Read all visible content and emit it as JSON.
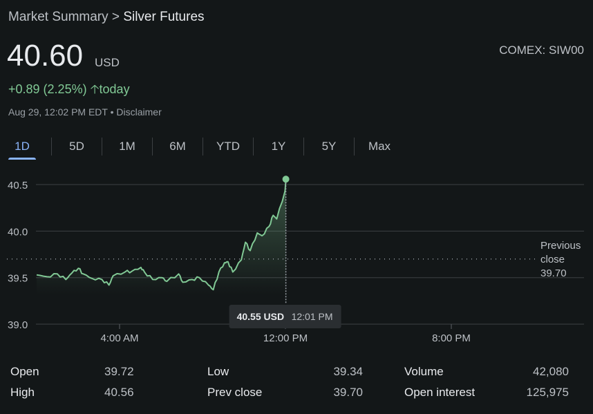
{
  "breadcrumb": {
    "parent": "Market Summary",
    "separator": ">",
    "current": "Silver Futures"
  },
  "quote": {
    "price": "40.60",
    "currency": "USD",
    "exchange": "COMEX: SIW00",
    "change": "+0.89 (2.25%)",
    "change_period": "today",
    "timestamp": "Aug 29, 12:02 PM EDT",
    "disclaimer": "Disclaimer"
  },
  "tabs": [
    {
      "label": "1D",
      "active": true
    },
    {
      "label": "5D"
    },
    {
      "label": "1M"
    },
    {
      "label": "6M"
    },
    {
      "label": "YTD"
    },
    {
      "label": "1Y"
    },
    {
      "label": "5Y"
    },
    {
      "label": "Max"
    }
  ],
  "colors": {
    "up": "#81c995",
    "accent": "#8ab4f8"
  },
  "chart_data": {
    "type": "line",
    "title": "Silver Futures 1D",
    "ylim": [
      39.0,
      40.6
    ],
    "yticks": [
      "39.0",
      "39.5",
      "40.0",
      "40.5"
    ],
    "xlim": [
      0,
      26.4
    ],
    "xticks": [
      {
        "x": 4,
        "label": "4:00 AM"
      },
      {
        "x": 12,
        "label": "12:00 PM"
      },
      {
        "x": 20,
        "label": "8:00 PM"
      }
    ],
    "previous_close": {
      "value": 39.7,
      "label_line1": "Previous",
      "label_line2": "close",
      "label_value": "39.70"
    },
    "tooltip": {
      "price": "40.55 USD",
      "time": "12:01 PM"
    },
    "series": [
      {
        "name": "Price",
        "x": [
          0,
          0.5,
          1.0,
          1.41,
          1.7,
          2.01,
          2.25,
          2.68,
          3.15,
          3.49,
          3.69,
          4.26,
          4.6,
          5.03,
          5.2,
          5.6,
          6.04,
          6.28,
          6.85,
          7.05,
          7.5,
          7.85,
          8.29,
          8.52,
          8.79,
          9.06,
          9.23,
          9.46,
          9.87,
          10.07,
          10.3,
          10.64,
          10.87,
          11.21,
          11.41,
          11.58,
          11.98,
          12.02
        ],
        "y": [
          39.53,
          39.51,
          39.54,
          39.48,
          39.55,
          39.6,
          39.54,
          39.49,
          39.48,
          39.42,
          39.52,
          39.56,
          39.57,
          39.61,
          39.56,
          39.48,
          39.5,
          39.46,
          39.54,
          39.45,
          39.48,
          39.5,
          39.42,
          39.37,
          39.56,
          39.66,
          39.67,
          39.56,
          39.69,
          39.88,
          39.79,
          39.98,
          39.95,
          40.05,
          40.17,
          40.13,
          40.43,
          40.55
        ]
      }
    ]
  },
  "stats": [
    {
      "label": "Open",
      "value": "39.72"
    },
    {
      "label": "Low",
      "value": "39.34"
    },
    {
      "label": "Volume",
      "value": "42,080"
    },
    {
      "label": "High",
      "value": "40.56"
    },
    {
      "label": "Prev close",
      "value": "39.70"
    },
    {
      "label": "Open interest",
      "value": "125,975"
    }
  ]
}
